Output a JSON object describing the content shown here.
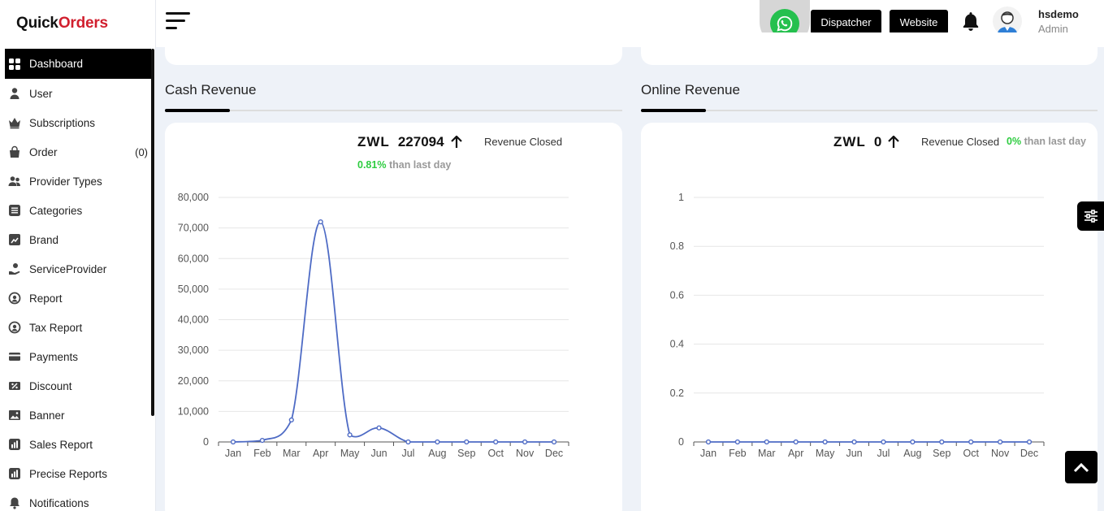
{
  "brand": {
    "part1": "Quick",
    "part2": "Orders"
  },
  "sidebar": {
    "items": [
      {
        "label": "Dashboard",
        "icon": "grid-icon",
        "active": true
      },
      {
        "label": "User",
        "icon": "user-icon"
      },
      {
        "label": "Subscriptions",
        "icon": "crown-icon"
      },
      {
        "label": "Order",
        "icon": "bag-icon",
        "count": "(0)"
      },
      {
        "label": "Provider Types",
        "icon": "users-icon"
      },
      {
        "label": "Categories",
        "icon": "list-icon"
      },
      {
        "label": "Brand",
        "icon": "tag-icon"
      },
      {
        "label": "ServiceProvider",
        "icon": "hand-icon"
      },
      {
        "label": "Report",
        "icon": "report-icon"
      },
      {
        "label": "Tax Report",
        "icon": "tax-icon"
      },
      {
        "label": "Payments",
        "icon": "card-icon"
      },
      {
        "label": "Discount",
        "icon": "discount-icon"
      },
      {
        "label": "Banner",
        "icon": "image-icon"
      },
      {
        "label": "Sales Report",
        "icon": "chart-icon"
      },
      {
        "label": "Precise Reports",
        "icon": "chart-icon"
      },
      {
        "label": "Notifications",
        "icon": "bell-icon"
      }
    ]
  },
  "header": {
    "dispatcher": "Dispatcher",
    "website": "Website",
    "user_name": "hsdemo",
    "user_role": "Admin"
  },
  "cash": {
    "title": "Cash Revenue",
    "currency": "ZWL",
    "amount": "227094",
    "closed_label": "Revenue Closed",
    "pct": "0.81%",
    "pct_suffix": "than last day"
  },
  "online": {
    "title": "Online Revenue",
    "currency": "ZWL",
    "amount": "0",
    "closed_label": "Revenue Closed",
    "pct": "0%",
    "pct_suffix": "than last day"
  },
  "colors": {
    "line": "#4e6bc5",
    "accent": "#000000",
    "positive": "#2ecc40"
  },
  "chart_data": [
    {
      "type": "line",
      "categories": [
        "Jan",
        "Feb",
        "Mar",
        "Apr",
        "May",
        "Jun",
        "Jul",
        "Aug",
        "Sep",
        "Oct",
        "Nov",
        "Dec"
      ],
      "values": [
        0,
        500,
        7200,
        72000,
        2300,
        4600,
        0,
        0,
        0,
        0,
        0,
        0
      ],
      "yticks": [
        "0",
        "10,000",
        "20,000",
        "30,000",
        "40,000",
        "50,000",
        "60,000",
        "70,000",
        "80,000"
      ],
      "ylim": [
        0,
        80000
      ],
      "smooth": true
    },
    {
      "type": "line",
      "categories": [
        "Jan",
        "Feb",
        "Mar",
        "Apr",
        "May",
        "Jun",
        "Jul",
        "Aug",
        "Sep",
        "Oct",
        "Nov",
        "Dec"
      ],
      "values": [
        0,
        0,
        0,
        0,
        0,
        0,
        0,
        0,
        0,
        0,
        0,
        0
      ],
      "yticks": [
        "0",
        "0.2",
        "0.4",
        "0.6",
        "0.8",
        "1"
      ],
      "ylim": [
        0,
        1
      ],
      "smooth": true
    }
  ]
}
